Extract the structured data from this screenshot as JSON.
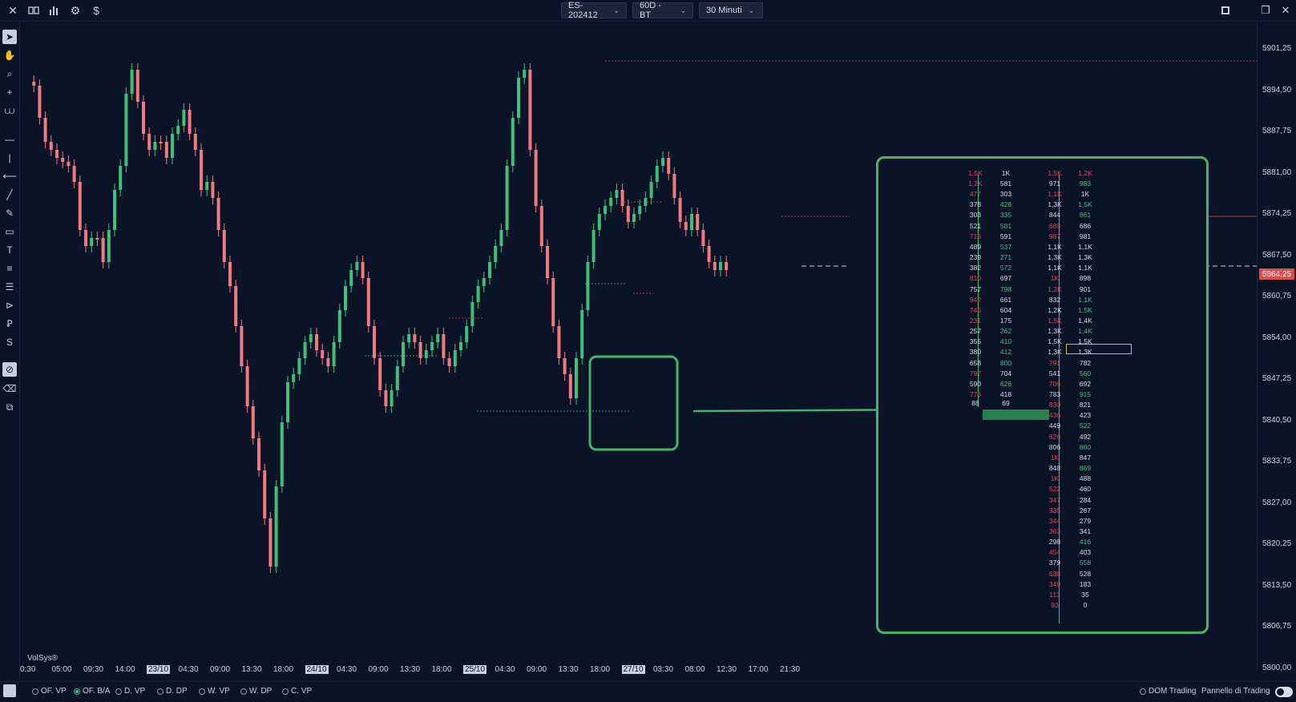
{
  "toolbar": {
    "symbol": "ES-202412",
    "timeframe": "60D - BT",
    "interval": "30 Minuti",
    "icons": [
      "close-icon",
      "layout-icon",
      "bar-chart-icon",
      "gear-icon",
      "dollar-icon"
    ]
  },
  "colors": {
    "background": "#0b1427",
    "up": "#3fbf7a",
    "down": "#e5484d",
    "highlight": "#44b26a"
  },
  "price_axis": {
    "labels": [
      "5901,25",
      "5894,50",
      "5887,75",
      "5881,00",
      "5874,25",
      "5867,50",
      "5860,75",
      "5854,00",
      "5847,25",
      "5840,50",
      "5833,75",
      "5827,00",
      "5820,25",
      "5813,50",
      "5806,75",
      "5800,00"
    ],
    "current_price": "5864,25"
  },
  "time_axis": {
    "labels": [
      {
        "text": "0:30",
        "hl": false
      },
      {
        "text": "05:00",
        "hl": false
      },
      {
        "text": "09:30",
        "hl": false
      },
      {
        "text": "14:00",
        "hl": false
      },
      {
        "text": "23/10",
        "hl": true
      },
      {
        "text": "04:30",
        "hl": false
      },
      {
        "text": "09:00",
        "hl": false
      },
      {
        "text": "13:30",
        "hl": false
      },
      {
        "text": "18:00",
        "hl": false
      },
      {
        "text": "24/10",
        "hl": true
      },
      {
        "text": "04:30",
        "hl": false
      },
      {
        "text": "09:00",
        "hl": false
      },
      {
        "text": "13:30",
        "hl": false
      },
      {
        "text": "18:00",
        "hl": false
      },
      {
        "text": "25/10",
        "hl": true
      },
      {
        "text": "04:30",
        "hl": false
      },
      {
        "text": "09:00",
        "hl": false
      },
      {
        "text": "13:30",
        "hl": false
      },
      {
        "text": "18:00",
        "hl": false
      },
      {
        "text": "27/10",
        "hl": true
      },
      {
        "text": "03:30",
        "hl": false
      },
      {
        "text": "08:00",
        "hl": false
      },
      {
        "text": "12:30",
        "hl": false
      },
      {
        "text": "17:00",
        "hl": false
      },
      {
        "text": "21:30",
        "hl": false
      }
    ]
  },
  "watermark": "VolSys®",
  "bottom_options": [
    {
      "label": "OF. VP",
      "selected": false
    },
    {
      "label": "OF. B/A",
      "selected": true
    },
    {
      "label": "D. VP",
      "selected": false
    },
    {
      "label": "D. DP",
      "selected": false
    },
    {
      "label": "W. VP",
      "selected": false
    },
    {
      "label": "W. DP",
      "selected": false
    },
    {
      "label": "C. VP",
      "selected": false
    }
  ],
  "bottom_right": {
    "dom_trading": "DOM Trading",
    "panel": "Pannello di Trading"
  },
  "dom": {
    "left_top_row": [
      "1,5K",
      "1K"
    ],
    "left_rows": [
      [
        "1,2K",
        "581"
      ],
      [
        "477",
        "303"
      ],
      [
        "378",
        "426"
      ],
      [
        "303",
        "335"
      ],
      [
        "521",
        "581"
      ],
      [
        "716",
        "591"
      ],
      [
        "489",
        "537"
      ],
      [
        "239",
        "271"
      ],
      [
        "382",
        "572"
      ],
      [
        "810",
        "697"
      ],
      [
        "757",
        "798"
      ],
      [
        "942",
        "661"
      ],
      [
        "745",
        "604"
      ],
      [
        "231",
        "175"
      ],
      [
        "257",
        "262"
      ],
      [
        "355",
        "410"
      ],
      [
        "380",
        "412"
      ],
      [
        "658",
        "800"
      ],
      [
        "797",
        "704"
      ],
      [
        "590",
        "626"
      ],
      [
        "776",
        "418"
      ]
    ],
    "left_highlight": [
      "88",
      "69"
    ],
    "right_top_row": [
      "1,5K",
      "1,2K"
    ],
    "right_rows": [
      [
        "971",
        "983"
      ],
      [
        "1,1K",
        "1K"
      ],
      [
        "1,3K",
        "1,5K"
      ],
      [
        "844",
        "861"
      ],
      [
        "688",
        "686"
      ],
      [
        "987",
        "981"
      ],
      [
        "1,1K",
        "1,1K"
      ],
      [
        "1,3K",
        "1,3K"
      ],
      [
        "1,1K",
        "1,1K"
      ],
      [
        "1K",
        "898"
      ],
      [
        "1,2K",
        "901"
      ],
      [
        "832",
        "1,1K"
      ],
      [
        "1,2K",
        "1,5K"
      ],
      [
        "1,5K",
        "1,4K"
      ],
      [
        "1,3K",
        "1,4K"
      ],
      [
        "1,5K",
        "1,5K"
      ],
      [
        "1,3K",
        "1,3K"
      ],
      [
        "791",
        "782"
      ],
      [
        "541",
        "560"
      ],
      [
        "706",
        "692"
      ],
      [
        "783",
        "915"
      ],
      [
        "830",
        "821"
      ],
      [
        "436",
        "423"
      ],
      [
        "449",
        "522"
      ],
      [
        "626",
        "492"
      ],
      [
        "806",
        "860"
      ],
      [
        "1K",
        "847"
      ],
      [
        "848",
        "869"
      ],
      [
        "1K",
        "488"
      ],
      [
        "522",
        "460"
      ],
      [
        "347",
        "284"
      ],
      [
        "335",
        "267"
      ],
      [
        "344",
        "279"
      ],
      [
        "363",
        "341"
      ],
      [
        "298",
        "416"
      ],
      [
        "454",
        "403"
      ],
      [
        "379",
        "558"
      ],
      [
        "638",
        "528"
      ],
      [
        "349",
        "183"
      ],
      [
        "113",
        "35"
      ],
      [
        "93",
        "0"
      ]
    ]
  }
}
